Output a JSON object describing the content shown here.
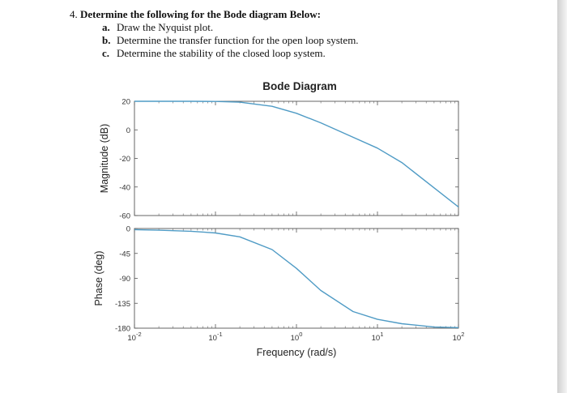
{
  "question": {
    "number": "4.",
    "title": "Determine the following for the Bode diagram Below:",
    "items": [
      {
        "letter": "a.",
        "text": "Draw the Nyquist plot."
      },
      {
        "letter": "b.",
        "text": "Determine the transfer function for the open loop system."
      },
      {
        "letter": "c.",
        "text": "Determine the stability of the closed loop system."
      }
    ]
  },
  "chart_data": [
    {
      "type": "line",
      "title": "Bode Diagram",
      "ylabel": "Magnitude (dB)",
      "xscale": "log",
      "xlim": [
        0.01,
        100
      ],
      "ylim": [
        -60,
        20
      ],
      "yticks": [
        "20",
        "0",
        "-20",
        "-40",
        "-60"
      ],
      "x": [
        0.01,
        0.02,
        0.05,
        0.1,
        0.2,
        0.5,
        1,
        2,
        5,
        10,
        20,
        50,
        100
      ],
      "series": [
        {
          "values": [
            20,
            20,
            20,
            19.9,
            19.4,
            16.5,
            11.6,
            4.9,
            -5.2,
            -12.8,
            -22.9,
            -40.6,
            -54.0
          ]
        }
      ],
      "grid": false,
      "line_color": "#4f9bc5"
    },
    {
      "type": "line",
      "xlabel": "Frequency (rad/s)",
      "ylabel": "Phase (deg)",
      "xscale": "log",
      "xlim": [
        0.01,
        100
      ],
      "ylim": [
        -180,
        0
      ],
      "xticks": [
        {
          "base": "10",
          "exp": "-2"
        },
        {
          "base": "10",
          "exp": "-1"
        },
        {
          "base": "10",
          "exp": "0"
        },
        {
          "base": "10",
          "exp": "1"
        },
        {
          "base": "10",
          "exp": "2"
        }
      ],
      "yticks": [
        "0",
        "-45",
        "-90",
        "-135",
        "-180"
      ],
      "x": [
        0.01,
        0.02,
        0.05,
        0.1,
        0.2,
        0.5,
        1,
        2,
        5,
        10,
        20,
        50,
        100
      ],
      "series": [
        {
          "values": [
            -2,
            -3,
            -5,
            -8,
            -15,
            -38,
            -72,
            -112,
            -150,
            -164,
            -172,
            -178,
            -179
          ]
        }
      ],
      "grid": false,
      "line_color": "#4f9bc5"
    }
  ]
}
